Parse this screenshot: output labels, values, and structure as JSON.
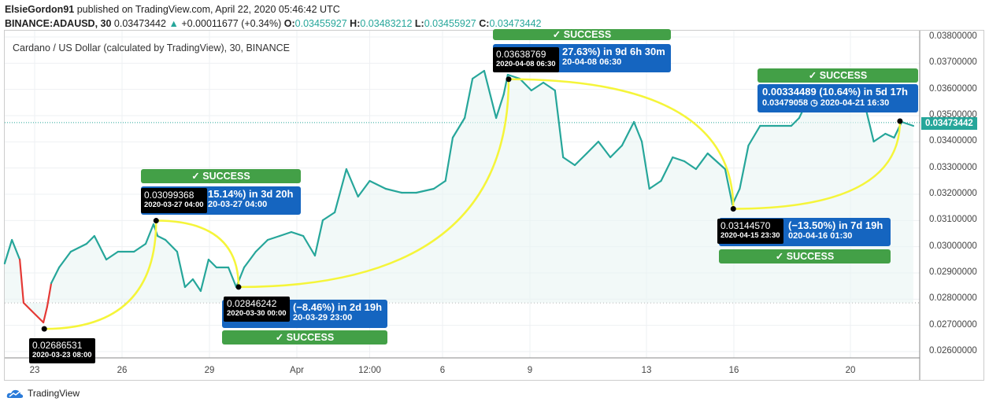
{
  "header": {
    "publisher": "ElsieGordon91",
    "published_text": "published on TradingView.com, April 22, 2020 05:46:42 UTC",
    "symbol": "BINANCE:ADAUSD, 30",
    "last": "0.03473442",
    "change": "+0.00011677 (+0.34%)",
    "o_label": "O:",
    "o": "0.03455927",
    "h_label": "H:",
    "h": "0.03483212",
    "l_label": "L:",
    "l": "0.03455927",
    "c_label": "C:",
    "c": "0.03473442"
  },
  "colors": {
    "line": "#26a69a",
    "down": "#e53935",
    "curve": "#f5f53a",
    "success": "#43a047",
    "box": "#1565c0"
  },
  "logo": "TradingView",
  "chart_data": {
    "type": "line",
    "title": "Cardano / US Dollar (calculated by TradingView), 30, BINANCE",
    "x_unit": "days since 2020-03-23 00:00",
    "ylim": [
      0.0255,
      0.0385
    ],
    "yticks": [
      "0.02600000",
      "0.02700000",
      "0.02800000",
      "0.02900000",
      "0.03000000",
      "0.03100000",
      "0.03200000",
      "0.03300000",
      "0.03400000",
      "0.03500000",
      "0.03600000",
      "0.03700000",
      "0.03800000"
    ],
    "yticks_values": [
      0.026,
      0.027,
      0.028,
      0.029,
      0.03,
      0.031,
      0.032,
      0.033,
      0.034,
      0.035,
      0.036,
      0.037,
      0.038
    ],
    "xticks": [
      {
        "label": "23",
        "day": 0
      },
      {
        "label": "26",
        "day": 3
      },
      {
        "label": "29",
        "day": 6
      },
      {
        "label": "Apr",
        "day": 9
      },
      {
        "label": "12:00",
        "day": 11.5
      },
      {
        "label": "6",
        "day": 14
      },
      {
        "label": "9",
        "day": 17
      },
      {
        "label": "13",
        "day": 21
      },
      {
        "label": "16",
        "day": 24
      },
      {
        "label": "20",
        "day": 28
      }
    ],
    "current_price": "0.03473442",
    "current_value": 0.03473442,
    "x": [
      -1.03,
      -0.78,
      -0.51,
      -0.38,
      -0.11,
      0.3,
      0.43,
      0.57,
      0.84,
      1.24,
      1.78,
      2.05,
      2.46,
      2.86,
      3.41,
      3.81,
      4.08,
      4.22,
      4.49,
      4.89,
      5.16,
      5.43,
      5.7,
      5.97,
      6.24,
      6.65,
      6.92,
      7.19,
      7.59,
      8.0,
      8.41,
      8.81,
      9.22,
      9.62,
      9.89,
      10.3,
      10.7,
      11.1,
      11.5,
      12.05,
      12.6,
      13.1,
      13.7,
      14.1,
      14.35,
      14.76,
      15.03,
      15.43,
      15.84,
      16.1,
      16.24,
      16.65,
      17.05,
      17.46,
      17.86,
      18.14,
      18.54,
      18.95,
      19.35,
      19.76,
      20.16,
      20.57,
      20.84,
      21.1,
      21.5,
      21.9,
      22.3,
      22.7,
      23.1,
      23.7,
      23.95,
      24.2,
      24.5,
      24.9,
      25.4,
      25.97,
      26.24,
      26.5,
      27.46,
      28.54,
      28.8,
      29.2,
      29.5,
      29.76,
      30.16
    ],
    "y": [
      0.02936,
      0.03026,
      0.02951,
      0.02786,
      0.02756,
      0.02711,
      0.02771,
      0.02861,
      0.02921,
      0.02981,
      0.03011,
      0.03041,
      0.02951,
      0.02981,
      0.02981,
      0.03011,
      0.03086,
      0.03041,
      0.03026,
      0.02981,
      0.02846,
      0.02876,
      0.02831,
      0.02951,
      0.02921,
      0.02921,
      0.02846,
      0.02921,
      0.02981,
      0.03026,
      0.03041,
      0.03056,
      0.03041,
      0.02966,
      0.03101,
      0.03131,
      0.03296,
      0.03191,
      0.03251,
      0.03221,
      0.03206,
      0.03206,
      0.03221,
      0.03251,
      0.03416,
      0.03491,
      0.03641,
      0.03671,
      0.03491,
      0.03581,
      0.03656,
      0.03641,
      0.03596,
      0.03626,
      0.03596,
      0.03341,
      0.03311,
      0.03356,
      0.03401,
      0.03341,
      0.03386,
      0.03476,
      0.03401,
      0.03221,
      0.03251,
      0.03341,
      0.03326,
      0.03296,
      0.03356,
      0.03296,
      0.03161,
      0.03221,
      0.03386,
      0.03461,
      0.03461,
      0.03461,
      0.03491,
      0.03551,
      0.03551,
      0.03521,
      0.03401,
      0.03431,
      0.03416,
      0.03476,
      0.03461
    ]
  },
  "annotations": [
    {
      "point_price": "0.02686531",
      "point_date": "2020-03-23 08:00",
      "day": 0.33,
      "value": 0.02686531
    },
    {
      "success": "✓ SUCCESS",
      "line1": "15.14%) in 3d 20h",
      "line2": "20-03-27  04:00",
      "point_price": "0.03099368",
      "point_date": "2020-03-27 04:00",
      "day": 4.17,
      "value": 0.03099368
    },
    {
      "success": "✓ SUCCESS",
      "line1": "(−8.46%) in 2d 19h",
      "line2": "20-03-29  23:00",
      "point_price": "0.02846242",
      "point_date": "2020-03-30 00:00",
      "day": 7.0,
      "value": 0.02846242
    },
    {
      "success": "✓ SUCCESS",
      "line1": "27.63%) in 9d 6h 30m",
      "line2": "20-04-08  06:30",
      "point_price": "0.03638769",
      "point_date": "2020-04-08 06:30",
      "day": 16.27,
      "value": 0.03638769
    },
    {
      "success": "✓ SUCCESS",
      "line1": "(−13.50%) in 7d 19h",
      "line2": "020-04-16  01:30",
      "point_price": "0.03144570",
      "point_date": "2020-04-15 23:30",
      "day": 23.98,
      "value": 0.0314457
    },
    {
      "success": "✓ SUCCESS",
      "line1": "0.00334489 (10.64%) in 5d 17h",
      "line2": "0.03479058 ◷ 2020-04-21  16:30",
      "day": 29.7,
      "value": 0.03479058
    }
  ]
}
